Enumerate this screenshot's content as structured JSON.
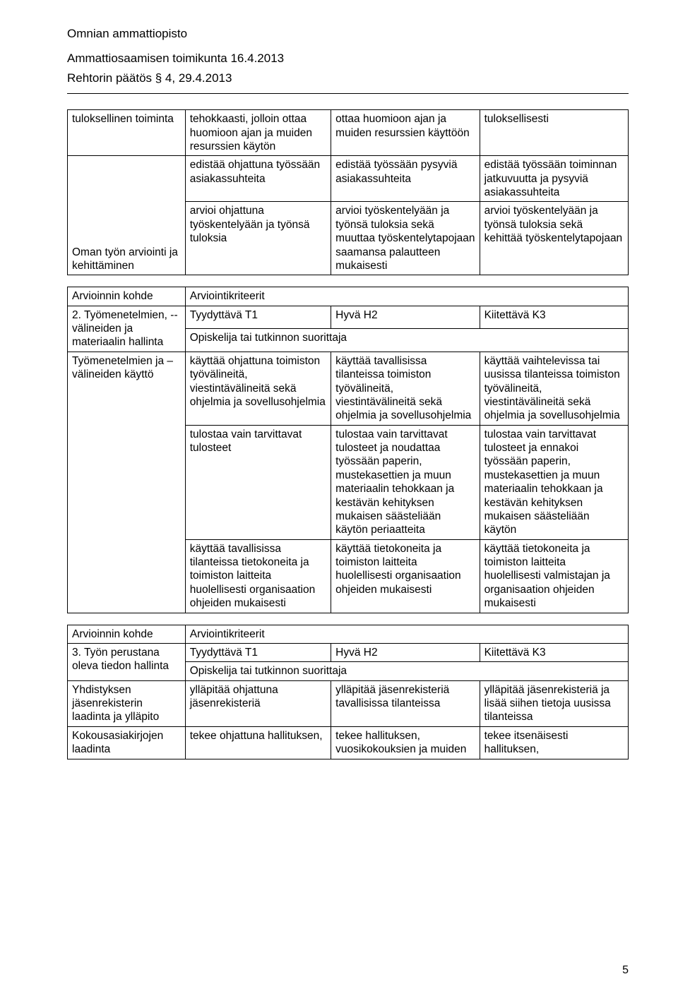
{
  "header": {
    "title": "Omnian ammattiopisto",
    "sub1": "Ammattiosaamisen toimikunta 16.4.2013",
    "sub2": "Rehtorin päätös § 4, 29.4.2013"
  },
  "page_number": "5",
  "table1": {
    "r1": {
      "a": "tuloksellinen toiminta",
      "b": "tehokkaasti, jolloin ottaa huomioon ajan ja muiden resurssien käytön",
      "c": "ottaa huomioon ajan ja muiden resurssien käyttöön",
      "d": "tuloksellisesti"
    },
    "r2": {
      "a": "",
      "b": "edistää ohjattuna työssään asiakassuhteita",
      "c": "edistää työssään pysyviä asiakassuhteita",
      "d": "edistää työssään toiminnan jatkuvuutta ja pysyviä asiakassuhteita"
    },
    "r3": {
      "a": "Oman työn arviointi ja kehittäminen",
      "b": "arvioi ohjattuna työskentelyään ja työnsä tuloksia",
      "c": "arvioi työskentelyään ja työnsä tuloksia sekä muuttaa työskentelytapojaan saamansa palautteen mukaisesti",
      "d": "arvioi työskentelyään ja työnsä tuloksia sekä kehittää työskentelytapojaan"
    }
  },
  "table2": {
    "r1": {
      "a": "Arvioinnin kohde",
      "b": "Arviointikriteerit"
    },
    "r2": {
      "a": "2. Työmenetelmien, --välineiden ja materiaalin hallinta",
      "b": "Tyydyttävä T1",
      "c": "Hyvä H2",
      "d": "Kiitettävä K3",
      "b2": "Opiskelija tai tutkinnon suorittaja"
    },
    "r3": {
      "a": "Työmenetelmien ja –välineiden käyttö",
      "b": "käyttää ohjattuna toimiston työvälineitä, viestintävälineitä sekä ohjelmia ja sovellusohjelmia",
      "c": "käyttää tavallisissa tilanteissa toimiston työvälineitä, viestintävälineitä sekä ohjelmia ja sovellusohjelmia",
      "d": "käyttää vaihtelevissa tai uusissa tilanteissa toimiston työvälineitä, viestintävälineitä sekä ohjelmia ja sovellusohjelmia"
    },
    "r4": {
      "b": "tulostaa vain tarvittavat tulosteet",
      "c": "tulostaa vain tarvittavat tulosteet ja noudattaa työssään paperin, mustekasettien ja muun materiaalin tehokkaan ja kestävän kehityksen mukaisen säästeliään käytön periaatteita",
      "d": "tulostaa vain tarvittavat tulosteet ja ennakoi työssään paperin, mustekasettien ja muun materiaalin tehokkaan ja kestävän kehityksen mukaisen säästeliään käytön"
    },
    "r5": {
      "b": "käyttää tavallisissa tilanteissa tietokoneita ja toimiston laitteita huolellisesti organisaation ohjeiden mukaisesti",
      "c": "käyttää tietokoneita ja toimiston laitteita huolellisesti organisaation ohjeiden mukaisesti",
      "d": "käyttää tietokoneita ja toimiston laitteita huolellisesti valmistajan ja organisaation ohjeiden mukaisesti"
    }
  },
  "table3": {
    "r1": {
      "a": "Arvioinnin kohde",
      "b": "Arviointikriteerit"
    },
    "r2": {
      "a": "3. Työn perustana oleva tiedon hallinta",
      "b": "Tyydyttävä T1",
      "c": "Hyvä H2",
      "d": "Kiitettävä K3",
      "b2": "Opiskelija tai tutkinnon suorittaja"
    },
    "r3": {
      "a": "Yhdistyksen jäsenrekisterin laadinta ja ylläpito",
      "b": "ylläpitää ohjattuna jäsenrekisteriä",
      "c": "ylläpitää jäsenrekisteriä tavallisissa tilanteissa",
      "d": "ylläpitää jäsenrekisteriä ja lisää siihen tietoja uusissa tilanteissa"
    },
    "r4": {
      "a": "Kokousasiakirjojen laadinta",
      "b": "tekee ohjattuna hallituksen,",
      "c": "tekee hallituksen, vuosikokouksien ja muiden",
      "d": "tekee itsenäisesti hallituksen,"
    }
  }
}
